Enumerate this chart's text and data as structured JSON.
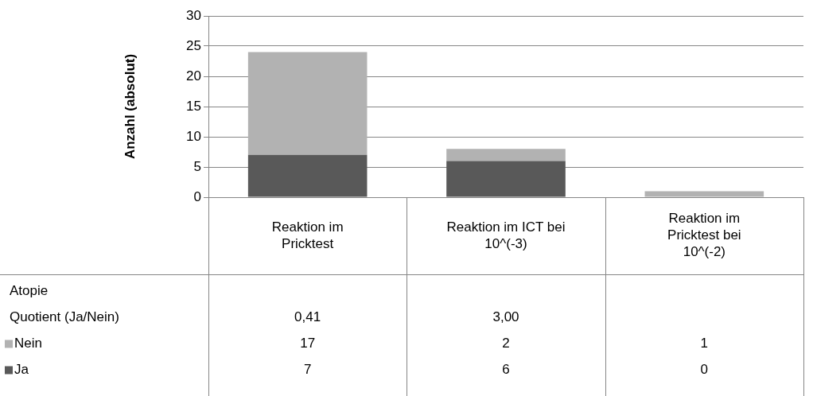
{
  "chart_data": {
    "type": "bar",
    "stacked": true,
    "ylabel": "Anzahl (absolut)",
    "legend_title": "Atopie",
    "categories": [
      "Reaktion im Pricktest",
      "Reaktion im ICT bei 10^(-3)",
      "Reaktion im Pricktest bei 10^(-2)"
    ],
    "series": [
      {
        "name": "Ja",
        "color": "#595959",
        "values": [
          7,
          6,
          0
        ]
      },
      {
        "name": "Nein",
        "color": "#b2b2b2",
        "values": [
          17,
          2,
          1
        ]
      }
    ],
    "ylim": [
      0,
      30
    ],
    "yticks": [
      0,
      5,
      10,
      15,
      20,
      25,
      30
    ],
    "grid": "y",
    "legend": "bottom",
    "data_labels": true,
    "annotations": [
      "Quotient (Ja/Nein)",
      "0,41",
      "3,00"
    ]
  }
}
